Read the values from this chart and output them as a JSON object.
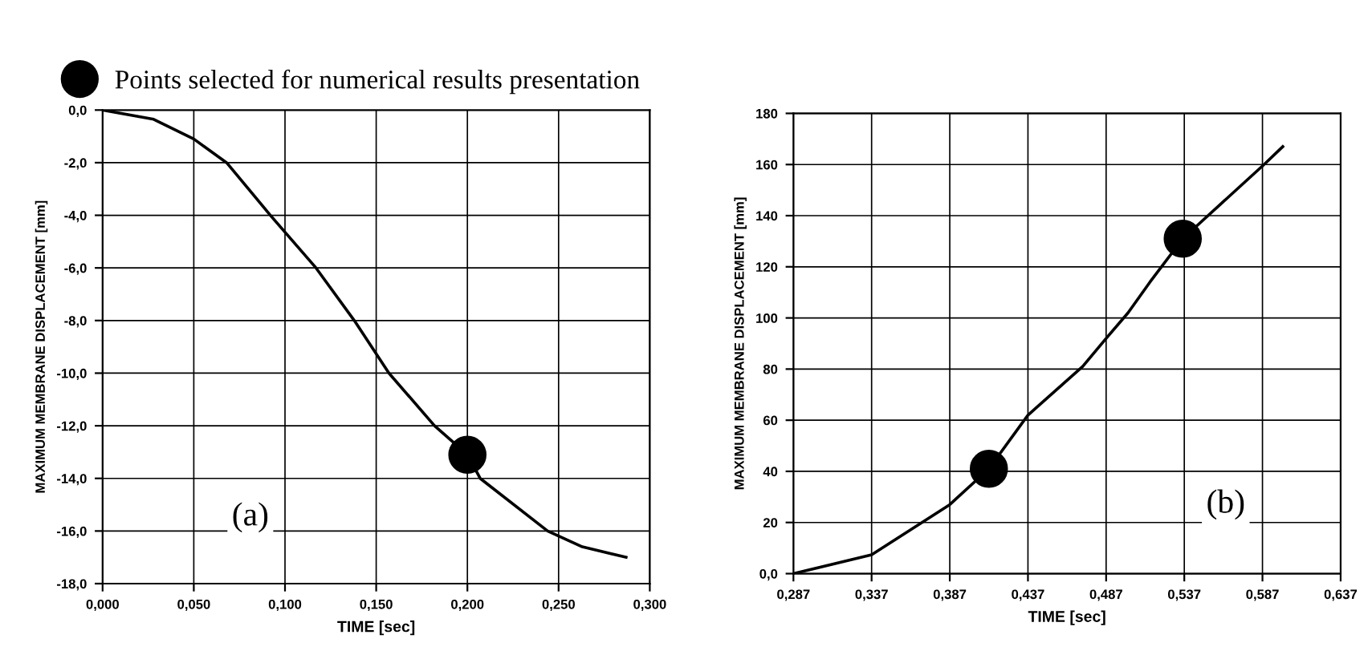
{
  "chart_data": [
    {
      "type": "line",
      "xlabel": "TIME [sec]",
      "ylabel": "MAXIMUM MEMBRANE DISPLACEMENT [mm]",
      "annotations": [
        "(a)"
      ],
      "xlim": [
        0,
        0.3
      ],
      "xticks": [
        {
          "value": 0,
          "label": "0,000"
        },
        {
          "value": 0.05,
          "label": "0,050"
        },
        {
          "value": 0.1,
          "label": "0,100"
        },
        {
          "value": 0.15,
          "label": "0,150"
        },
        {
          "value": 0.2,
          "label": "0,200"
        },
        {
          "value": 0.25,
          "label": "0,250"
        },
        {
          "value": 0.3,
          "label": "0,300"
        }
      ],
      "ylim": [
        -18,
        0
      ],
      "yticks": [
        {
          "value": 0,
          "label": "0,0"
        },
        {
          "value": -2,
          "label": "-2,0"
        },
        {
          "value": -4,
          "label": "-4,0"
        },
        {
          "value": -6,
          "label": "-6,0"
        },
        {
          "value": -8,
          "label": "-8,0"
        },
        {
          "value": -10,
          "label": "-10,0"
        },
        {
          "value": -12,
          "label": "-12,0"
        },
        {
          "value": -14,
          "label": "-14,0"
        },
        {
          "value": -16,
          "label": "-16,0"
        },
        {
          "value": -18,
          "label": "-18,0"
        }
      ],
      "grid": true,
      "legend": "top",
      "series": [
        {
          "color": "#000000",
          "marker": "none",
          "line_style": "solid",
          "x": [
            0,
            0.028,
            0.05,
            0.068,
            0.092,
            0.117,
            0.138,
            0.157,
            0.182,
            0.2,
            0.207,
            0.244,
            0.263,
            0.287
          ],
          "values": [
            0,
            -0.35,
            -1.1,
            -2.0,
            -4.0,
            -6.0,
            -8.0,
            -10.0,
            -12.0,
            -13.1,
            -14.0,
            -16.0,
            -16.6,
            -17.0
          ]
        },
        {
          "type": "scatter",
          "name": "Points selected for numerical results presentation",
          "color": "#000000",
          "marker": "circle",
          "x": [
            0.2
          ],
          "values": [
            -13.1
          ]
        }
      ]
    },
    {
      "type": "line",
      "xlabel": "TIME [sec]",
      "ylabel": "MAXIMUM MEMBRANE DISPLACEMENT [mm]",
      "annotations": [
        "(b)"
      ],
      "xlim": [
        0.287,
        0.637
      ],
      "xticks": [
        {
          "value": 0.287,
          "label": "0,287"
        },
        {
          "value": 0.337,
          "label": "0,337"
        },
        {
          "value": 0.387,
          "label": "0,387"
        },
        {
          "value": 0.437,
          "label": "0,437"
        },
        {
          "value": 0.487,
          "label": "0,487"
        },
        {
          "value": 0.537,
          "label": "0,537"
        },
        {
          "value": 0.587,
          "label": "0,587"
        },
        {
          "value": 0.637,
          "label": "0,637"
        }
      ],
      "ylim": [
        0,
        180
      ],
      "yticks": [
        {
          "value": 0,
          "label": "0,0"
        },
        20,
        40,
        60,
        80,
        100,
        120,
        140,
        160,
        180
      ],
      "grid": true,
      "series": [
        {
          "color": "#000000",
          "marker": "none",
          "line_style": "solid",
          "x": [
            0.287,
            0.337,
            0.387,
            0.412,
            0.437,
            0.472,
            0.487,
            0.501,
            0.515,
            0.536,
            0.588,
            0.6
          ],
          "values": [
            0,
            7.4,
            27,
            41,
            62,
            81,
            92,
            102,
            114,
            131,
            160,
            167
          ]
        },
        {
          "type": "scatter",
          "color": "#000000",
          "marker": "circle",
          "x": [
            0.412,
            0.536
          ],
          "values": [
            41,
            131
          ]
        }
      ]
    }
  ]
}
